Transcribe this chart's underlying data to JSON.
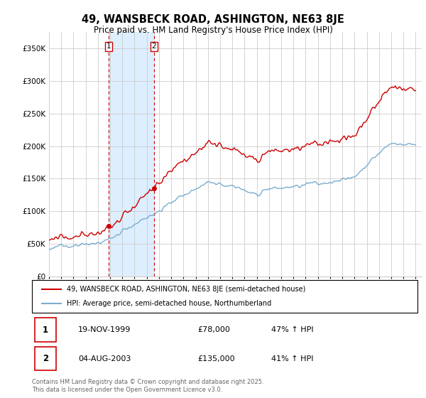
{
  "title": "49, WANSBECK ROAD, ASHINGTON, NE63 8JE",
  "subtitle": "Price paid vs. HM Land Registry's House Price Index (HPI)",
  "legend_line1": "49, WANSBECK ROAD, ASHINGTON, NE63 8JE (semi-detached house)",
  "legend_line2": "HPI: Average price, semi-detached house, Northumberland",
  "sale1_label": "1",
  "sale1_date": "19-NOV-1999",
  "sale1_price": "£78,000",
  "sale1_hpi": "47% ↑ HPI",
  "sale2_label": "2",
  "sale2_date": "04-AUG-2003",
  "sale2_price": "£135,000",
  "sale2_hpi": "41% ↑ HPI",
  "footer": "Contains HM Land Registry data © Crown copyright and database right 2025.\nThis data is licensed under the Open Government Licence v3.0.",
  "red_color": "#cc0000",
  "blue_color": "#7aadce",
  "highlight_color": "#ddeeff",
  "vline_color": "#cc0000",
  "background_color": "#ffffff",
  "grid_color": "#cccccc",
  "ylim": [
    0,
    375000
  ],
  "sale1_year": 1999.9,
  "sale2_year": 2003.6,
  "highlight_start": 1999.9,
  "highlight_end": 2003.6,
  "xmin": 1995,
  "xmax": 2025.5
}
